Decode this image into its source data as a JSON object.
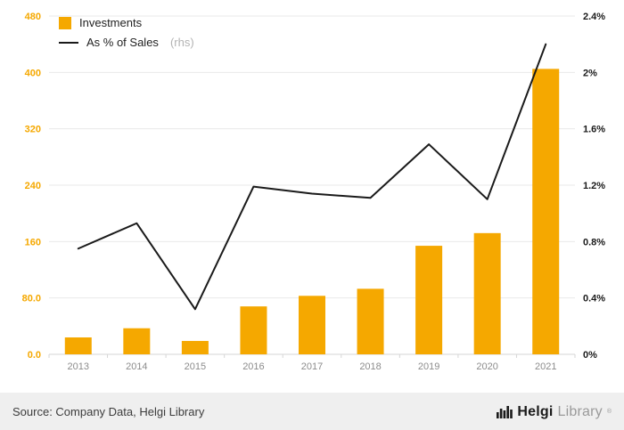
{
  "chart_data": {
    "type": "bar+line",
    "title": "",
    "categories": [
      "2013",
      "2014",
      "2015",
      "2016",
      "2017",
      "2018",
      "2019",
      "2020",
      "2021"
    ],
    "series": [
      {
        "name": "Investments",
        "type": "bar",
        "axis": "left",
        "color": "#f5a800",
        "values": [
          24,
          37,
          19,
          68,
          83,
          93,
          154,
          172,
          405
        ]
      },
      {
        "name": "As % of Sales",
        "type": "line",
        "axis": "right",
        "color": "#1a1a1a",
        "values": [
          0.75,
          0.93,
          0.32,
          1.19,
          1.14,
          1.11,
          1.49,
          1.1,
          2.2
        ]
      }
    ],
    "left_axis": {
      "min": 0,
      "max": 480,
      "ticks": [
        "0.0",
        "80.0",
        "160",
        "240",
        "320",
        "400",
        "480"
      ],
      "color": "#f5a800"
    },
    "right_axis": {
      "min": 0,
      "max": 2.4,
      "ticks": [
        "0%",
        "0.4%",
        "0.8%",
        "1.2%",
        "1.6%",
        "2%",
        "2.4%"
      ],
      "color": "#1a1a1a"
    },
    "grid": true,
    "legend_position": "top-left"
  },
  "legend": {
    "investments": "Investments",
    "pct_label": "As % of Sales",
    "pct_suffix": "(rhs)"
  },
  "footer": {
    "source_text": "Source: Company Data, Helgi Library",
    "brand": {
      "bold": "Helgi",
      "light": "Library",
      "mark": "®"
    }
  }
}
